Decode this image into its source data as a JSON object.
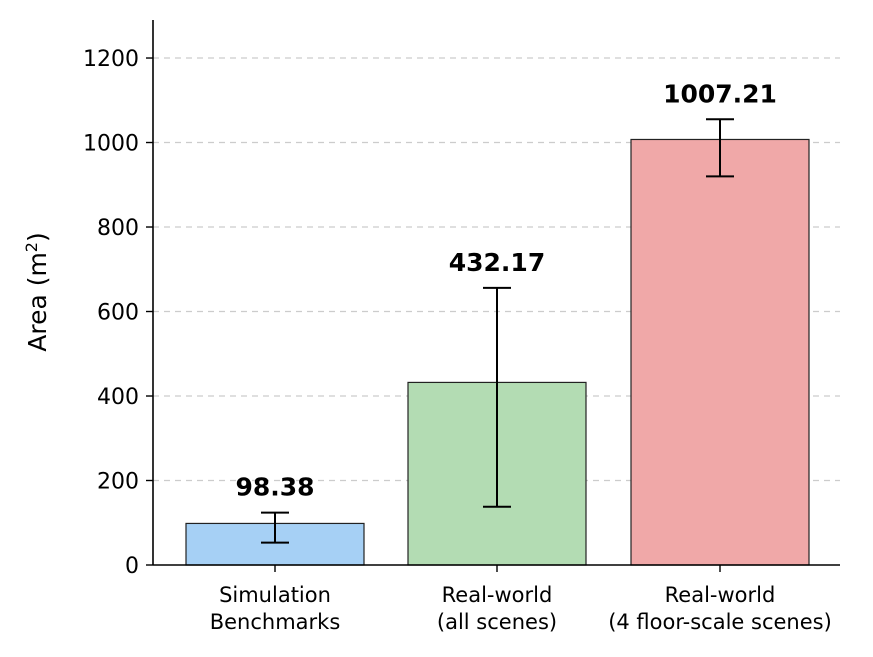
{
  "chart_data": {
    "type": "bar",
    "categories": [
      [
        "Simulation",
        "Benchmarks"
      ],
      [
        "Real-world",
        "(all scenes)"
      ],
      [
        "Real-world",
        "(4 floor-scale scenes)"
      ]
    ],
    "values": [
      98.38,
      432.17,
      1007.21
    ],
    "value_labels": [
      "98.38",
      "432.17",
      "1007.21"
    ],
    "error_low": [
      53,
      138,
      920
    ],
    "error_high": [
      124,
      656,
      1055
    ],
    "colors": [
      "#a6d0f5",
      "#b3dcb3",
      "#f0a8a8"
    ],
    "ylabel": "Area (m",
    "ylabel_sup": "2",
    "ylabel_close": ")",
    "ylim": [
      0,
      1290
    ],
    "yticks": [
      0,
      200,
      400,
      600,
      800,
      1000,
      1200
    ],
    "grid": "y-dashed"
  }
}
